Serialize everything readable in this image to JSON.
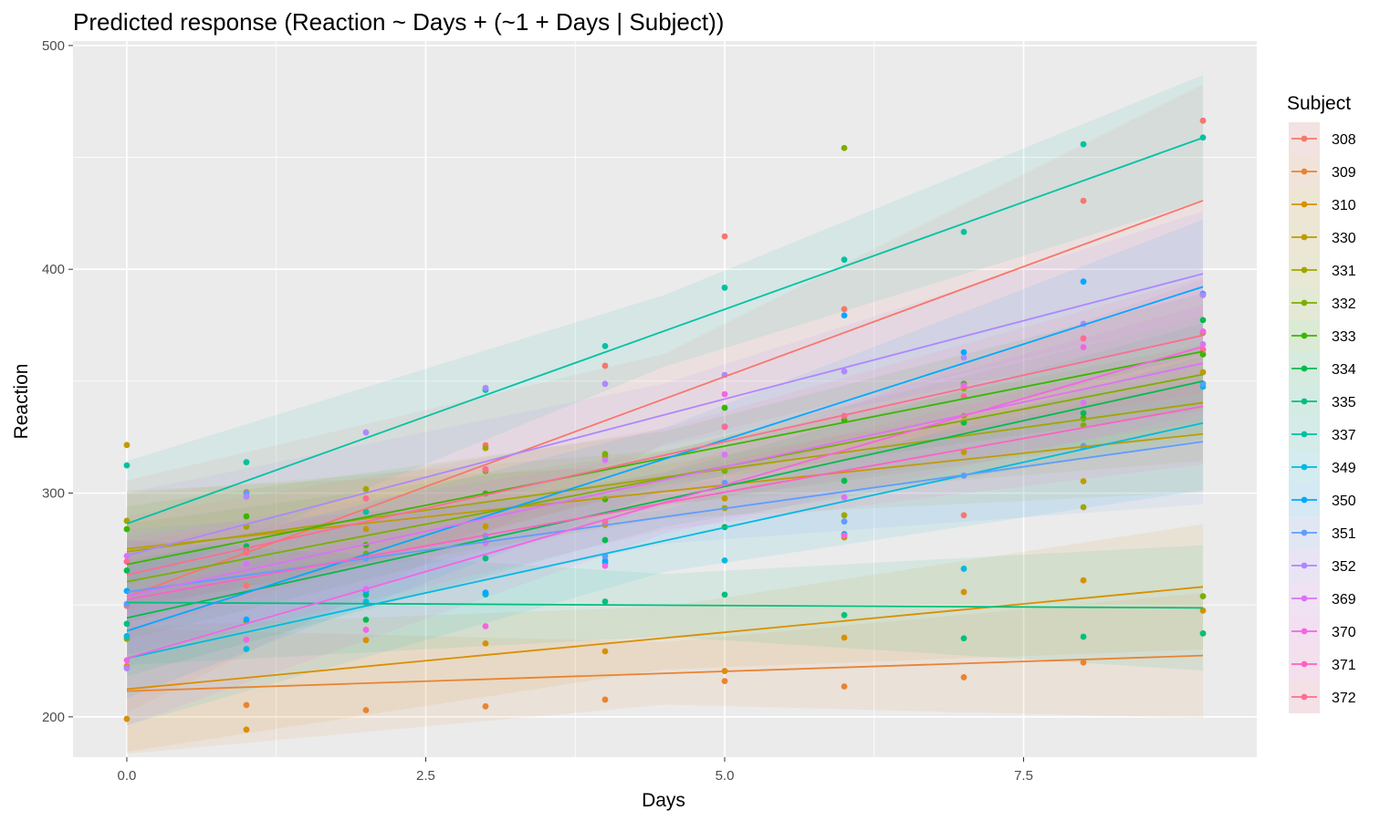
{
  "chart_data": {
    "type": "line",
    "title": "Predicted response (Reaction ~ Days + (~1 + Days | Subject))",
    "xlabel": "Days",
    "ylabel": "Reaction",
    "xlim": [
      -0.45,
      9.45
    ],
    "ylim": [
      182,
      502
    ],
    "x_ticks": [
      0,
      2.5,
      5,
      7.5
    ],
    "x_tick_labels": [
      "0.0",
      "2.5",
      "5.0",
      "7.5"
    ],
    "y_ticks": [
      200,
      300,
      400,
      500
    ],
    "y_tick_labels": [
      "200",
      "300",
      "400",
      "500"
    ],
    "grid": true,
    "legend": {
      "title": "Subject",
      "position": "right"
    },
    "x": [
      0,
      1,
      2,
      3,
      4,
      5,
      6,
      7,
      8,
      9
    ],
    "series": [
      {
        "name": "308",
        "color": "#F8766D",
        "fit": [
          253.7,
          430.7
        ],
        "band": [
          20,
          52
        ],
        "values": [
          249.6,
          258.7,
          250.8,
          321.4,
          356.9,
          414.7,
          382.2,
          290.1,
          430.6,
          466.4
        ]
      },
      {
        "name": "309",
        "color": "#EA8331",
        "fit": [
          211.5,
          227.4
        ],
        "band": [
          14,
          28
        ],
        "values": [
          222.7,
          205.3,
          203.0,
          204.7,
          207.7,
          216.0,
          213.6,
          217.7,
          224.3,
          237.3
        ]
      },
      {
        "name": "310",
        "color": "#D89000",
        "fit": [
          212.4,
          258.1
        ],
        "band": [
          14,
          28
        ],
        "values": [
          199.1,
          194.3,
          234.3,
          232.8,
          229.3,
          220.5,
          235.4,
          255.8,
          261.0,
          247.5
        ]
      },
      {
        "name": "330",
        "color": "#C09B00",
        "fit": [
          275.1,
          326.4
        ],
        "band": [
          12,
          26
        ],
        "values": [
          321.5,
          300.4,
          283.9,
          285.1,
          285.8,
          297.6,
          280.2,
          318.3,
          305.3,
          354.0
        ]
      },
      {
        "name": "331",
        "color": "#A3A500",
        "fit": [
          273.8,
          340.4
        ],
        "band": [
          12,
          26
        ],
        "values": [
          287.6,
          285.0,
          301.8,
          320.1,
          316.3,
          293.3,
          290.1,
          334.5,
          293.7,
          371.6
        ]
      },
      {
        "name": "332",
        "color": "#7CAE00",
        "fit": [
          260.4,
          353.0
        ],
        "band": [
          12,
          26
        ],
        "values": [
          234.9,
          242.8,
          272.9,
          309.8,
          317.5,
          309.9,
          454.2,
          346.8,
          330.3,
          253.9
        ]
      },
      {
        "name": "333",
        "color": "#39B600",
        "fit": [
          268.1,
          363.3
        ],
        "band": [
          12,
          26
        ],
        "values": [
          283.9,
          289.6,
          276.8,
          299.8,
          297.2,
          338.1,
          332.6,
          348.8,
          333.4,
          362.0
        ]
      },
      {
        "name": "334",
        "color": "#00BB4E",
        "fit": [
          244.2,
          350.0
        ],
        "band": [
          12,
          26
        ],
        "values": [
          265.4,
          276.2,
          243.4,
          254.7,
          279.0,
          284.8,
          305.5,
          331.5,
          335.7,
          377.3
        ]
      },
      {
        "name": "335",
        "color": "#00BF7D",
        "fit": [
          251.1,
          248.7
        ],
        "band": [
          14,
          28
        ],
        "values": [
          241.6,
          273.9,
          254.5,
          270.8,
          251.5,
          254.6,
          245.5,
          235.1,
          235.8,
          237.3
        ]
      },
      {
        "name": "337",
        "color": "#00C1A3",
        "fit": [
          286.3,
          458.8
        ],
        "band": [
          16,
          28
        ],
        "values": [
          312.4,
          313.8,
          291.6,
          346.1,
          365.7,
          391.8,
          404.3,
          416.7,
          455.9,
          458.9
        ]
      },
      {
        "name": "349",
        "color": "#00BAE0",
        "fit": [
          226.2,
          331.3
        ],
        "band": [
          14,
          30
        ],
        "values": [
          236.1,
          230.3,
          251.5,
          254.9,
          269.9,
          269.9,
          281.7,
          266.2,
          320.6,
          347.5
        ]
      },
      {
        "name": "350",
        "color": "#00A9FF",
        "fit": [
          238.4,
          392.2
        ],
        "band": [
          14,
          30
        ],
        "values": [
          256.3,
          243.5,
          256.2,
          255.5,
          268.9,
          329.7,
          379.4,
          362.9,
          394.5,
          389.0
        ]
      },
      {
        "name": "351",
        "color": "#619CFF",
        "fit": [
          255.8,
          323.0
        ],
        "band": [
          12,
          28
        ],
        "values": [
          250.5,
          300.0,
          270.8,
          280.9,
          271.8,
          304.6,
          287.3,
          307.8,
          321.1,
          348.9
        ]
      },
      {
        "name": "352",
        "color": "#AE87FF",
        "fit": [
          272.1,
          398.0
        ],
        "band": [
          14,
          28
        ],
        "values": [
          221.7,
          298.4,
          327.1,
          347.0,
          348.8,
          352.8,
          354.4,
          360.5,
          375.6,
          388.5
        ]
      },
      {
        "name": "369",
        "color": "#DB72FB",
        "fit": [
          254.0,
          358.0
        ],
        "band": [
          12,
          26
        ],
        "values": [
          271.9,
          268.4,
          257.2,
          277.7,
          314.8,
          317.2,
          298.1,
          348.1,
          340.3,
          366.5
        ]
      },
      {
        "name": "370",
        "color": "#F564E3",
        "fit": [
          226.2,
          365.5
        ],
        "band": [
          14,
          30
        ],
        "values": [
          225.3,
          234.5,
          238.9,
          240.5,
          267.5,
          344.2,
          281.1,
          347.6,
          365.2,
          372.2
        ]
      },
      {
        "name": "371",
        "color": "#FF61C3",
        "fit": [
          252.4,
          338.8
        ],
        "band": [
          12,
          26
        ],
        "values": [
          269.4,
          273.5,
          297.6,
          310.6,
          287.2,
          329.6,
          334.5,
          343.2,
          369.1,
          364.1
        ]
      },
      {
        "name": "372",
        "color": "#FF6C91",
        "fit": [
          263.5,
          370.5
        ],
        "band": [
          12,
          26
        ],
        "values": [
          269.4,
          273.5,
          297.6,
          310.6,
          287.2,
          329.6,
          334.5,
          343.2,
          369.1,
          364.1
        ]
      }
    ]
  }
}
